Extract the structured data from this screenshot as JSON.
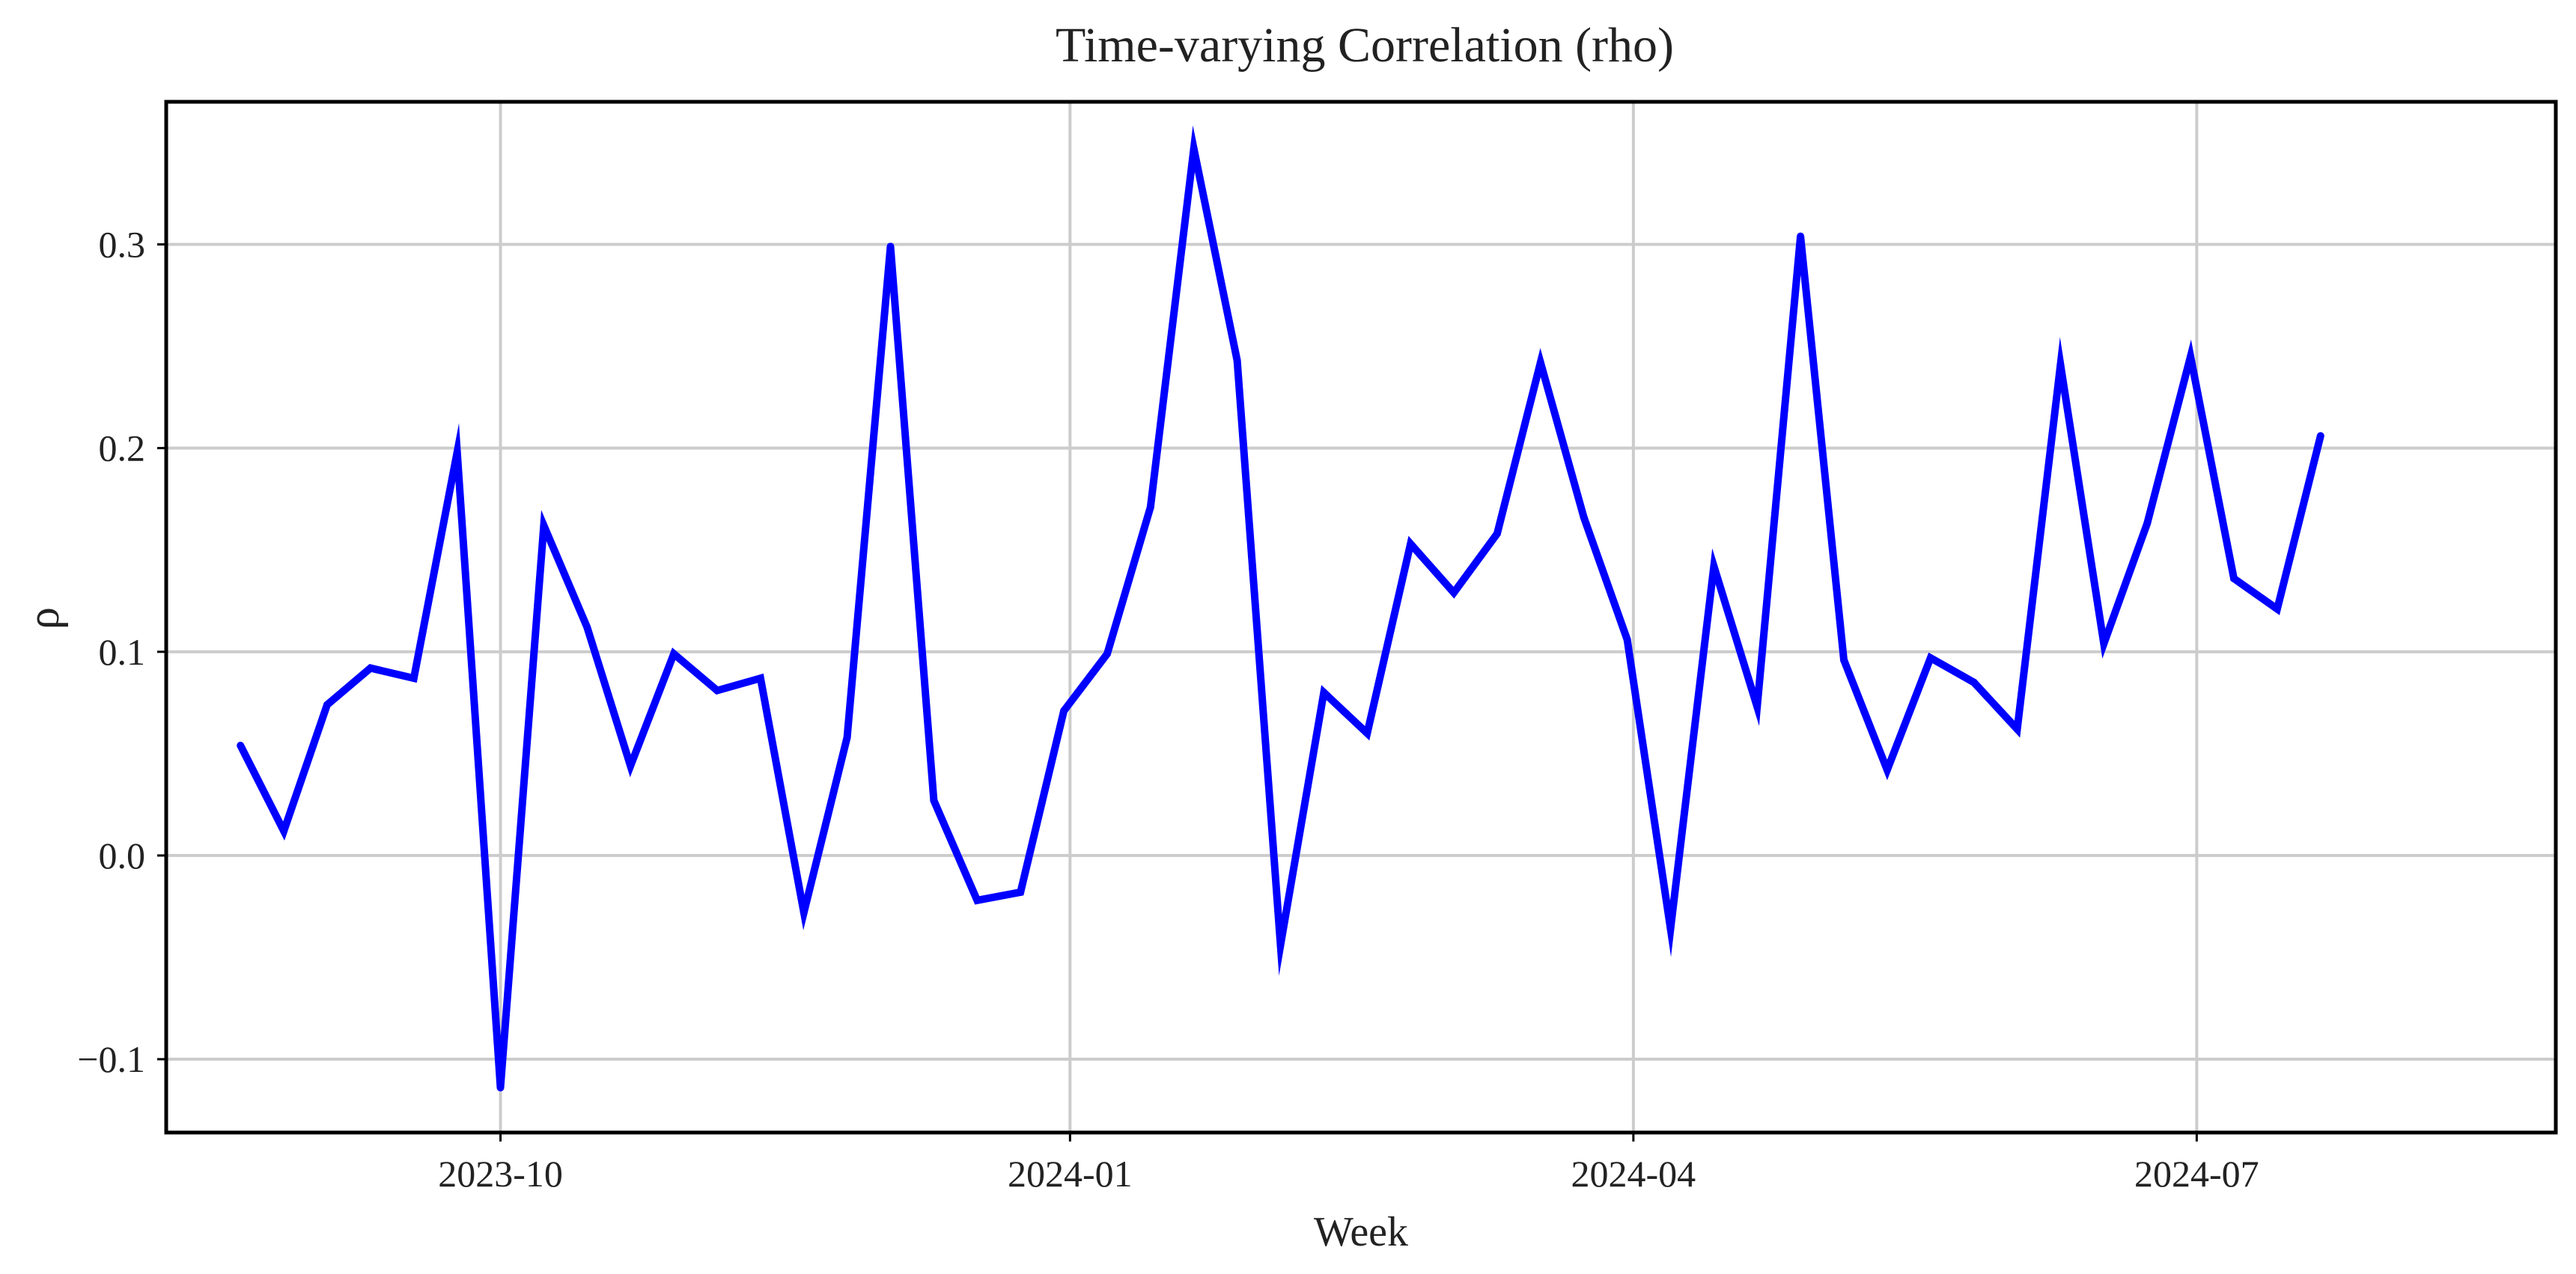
{
  "chart_data": {
    "type": "line",
    "title": "Time-varying Correlation (rho)",
    "xlabel": "Week",
    "ylabel": "ρ",
    "x_is_date": true,
    "x_ticks": [
      "2023-10-01",
      "2024-01-01",
      "2024-04-01",
      "2024-07-01"
    ],
    "x_tick_labels": [
      "2023-10",
      "2024-01",
      "2024-04",
      "2024-07"
    ],
    "xlim": [
      "2023-08-08",
      "2024-08-28"
    ],
    "y_ticks": [
      -0.1,
      0.0,
      0.1,
      0.2,
      0.3
    ],
    "y_tick_labels": [
      "−0.1",
      "0.0",
      "0.1",
      "0.2",
      "0.3"
    ],
    "ylim": [
      -0.136,
      0.37
    ],
    "grid": true,
    "legend": "none",
    "line_color": "#0000ff",
    "x": [
      "2023-08-20",
      "2023-08-27",
      "2023-09-03",
      "2023-09-10",
      "2023-09-17",
      "2023-09-24",
      "2023-10-01",
      "2023-10-08",
      "2023-10-15",
      "2023-10-22",
      "2023-10-29",
      "2023-11-05",
      "2023-11-12",
      "2023-11-19",
      "2023-11-26",
      "2023-12-03",
      "2023-12-10",
      "2023-12-17",
      "2023-12-24",
      "2023-12-31",
      "2024-01-07",
      "2024-01-14",
      "2024-01-21",
      "2024-01-28",
      "2024-02-04",
      "2024-02-11",
      "2024-02-18",
      "2024-02-25",
      "2024-03-03",
      "2024-03-10",
      "2024-03-17",
      "2024-03-24",
      "2024-03-31",
      "2024-04-07",
      "2024-04-14",
      "2024-04-21",
      "2024-04-28",
      "2024-05-05",
      "2024-05-12",
      "2024-05-19",
      "2024-05-26",
      "2024-06-02",
      "2024-06-09",
      "2024-06-16",
      "2024-06-23",
      "2024-06-30",
      "2024-07-07",
      "2024-07-14",
      "2024-07-21"
    ],
    "series": [
      {
        "values": [
          0.054,
          0.012,
          0.074,
          0.092,
          0.087,
          0.198,
          -0.114,
          0.162,
          0.112,
          0.044,
          0.099,
          0.081,
          0.087,
          -0.028,
          0.058,
          0.299,
          0.027,
          -0.022,
          -0.018,
          0.071,
          0.099,
          0.171,
          0.347,
          0.243,
          -0.044,
          0.08,
          0.06,
          0.153,
          0.129,
          0.158,
          0.242,
          0.166,
          0.106,
          -0.036,
          0.142,
          0.073,
          0.304,
          0.096,
          0.042,
          0.097,
          0.085,
          0.062,
          0.241,
          0.104,
          0.163,
          0.245,
          0.136,
          0.121,
          0.206
        ]
      }
    ]
  }
}
